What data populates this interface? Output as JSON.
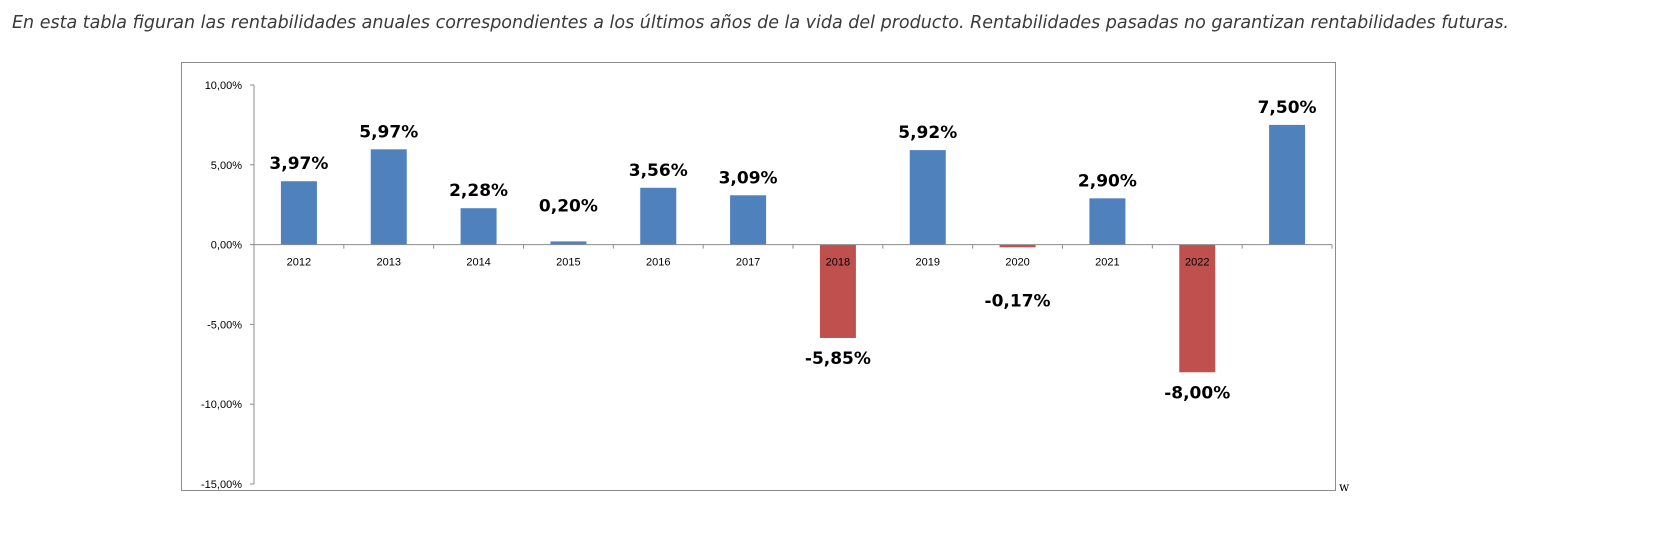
{
  "caption": "En esta tabla figuran las rentabilidades anuales correspondientes a los últimos años de la vida del producto. Rentabilidades pasadas no garantizan rentabilidades futuras.",
  "stray_mark": "w",
  "colors": {
    "positive": "#4f81bd",
    "negative": "#c0504d",
    "axis": "#8c8c8c"
  },
  "chart_data": {
    "type": "bar",
    "categories": [
      "2012",
      "2013",
      "2014",
      "2015",
      "2016",
      "2017",
      "2018",
      "2019",
      "2020",
      "2021",
      "2022",
      ""
    ],
    "values": [
      3.97,
      5.97,
      2.28,
      0.2,
      3.56,
      3.09,
      -5.85,
      5.92,
      -0.17,
      2.9,
      -8.0,
      7.5
    ],
    "data_labels": [
      "3,97%",
      "5,97%",
      "2,28%",
      "0,20%",
      "3,56%",
      "3,09%",
      "-5,85%",
      "5,92%",
      "-0,17%",
      "2,90%",
      "-8,00%",
      "7,50%"
    ],
    "yticks": [
      10,
      5,
      0,
      -5,
      -10,
      -15
    ],
    "ytick_labels": [
      "10,00%",
      "5,00%",
      "0,00%",
      "-5,00%",
      "-10,00%",
      "-15,00%"
    ],
    "ylim": [
      -15,
      10
    ],
    "title": "",
    "xlabel": "",
    "ylabel": "",
    "grid": false,
    "legend": "none"
  }
}
